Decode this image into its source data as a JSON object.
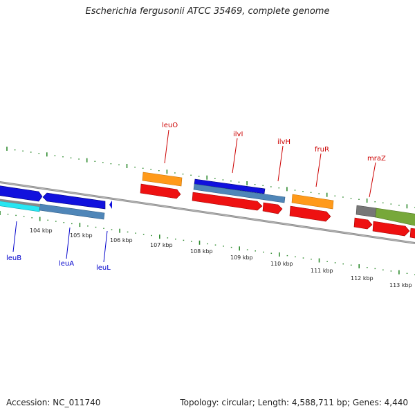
{
  "title": "Escherichia fergusonii ATCC 35469, complete genome",
  "footer": {
    "accession": "Accession: NC_011740",
    "summary": "Topology: circular; Length: 4,588,711 bp; Genes: 4,440"
  },
  "ticks": [
    {
      "label": "104 kbp",
      "kbp": 104
    },
    {
      "label": "105 kbp",
      "kbp": 105
    },
    {
      "label": "106 kbp",
      "kbp": 106
    },
    {
      "label": "107 kbp",
      "kbp": 107
    },
    {
      "label": "108 kbp",
      "kbp": 108
    },
    {
      "label": "109 kbp",
      "kbp": 109
    },
    {
      "label": "110 kbp",
      "kbp": 110
    },
    {
      "label": "111 kbp",
      "kbp": 111
    },
    {
      "label": "112 kbp",
      "kbp": 112
    },
    {
      "label": "113 kbp",
      "kbp": 113
    }
  ],
  "gene_labels": [
    {
      "text": "leuO",
      "color": "#cc0000"
    },
    {
      "text": "ilvI",
      "color": "#cc0000"
    },
    {
      "text": "ilvH",
      "color": "#cc0000"
    },
    {
      "text": "fruR",
      "color": "#cc0000"
    },
    {
      "text": "mraZ",
      "color": "#cc0000"
    },
    {
      "text": "leuB",
      "color": "#0000cc"
    },
    {
      "text": "leuA",
      "color": "#0000cc"
    },
    {
      "text": "leuL",
      "color": "#0000cc"
    }
  ],
  "colors": {
    "forward_cds": "#ee1111",
    "reverse_cds": "#1111dd",
    "gene_orange": "#ff9a1a",
    "gene_steelblue": "#4f86b8",
    "gene_cyan": "#27e6f2",
    "gene_gray": "#777777",
    "gene_olive": "#77a83a",
    "backbone": "#8c8c8c",
    "tick_green": "#2e8b2e"
  }
}
